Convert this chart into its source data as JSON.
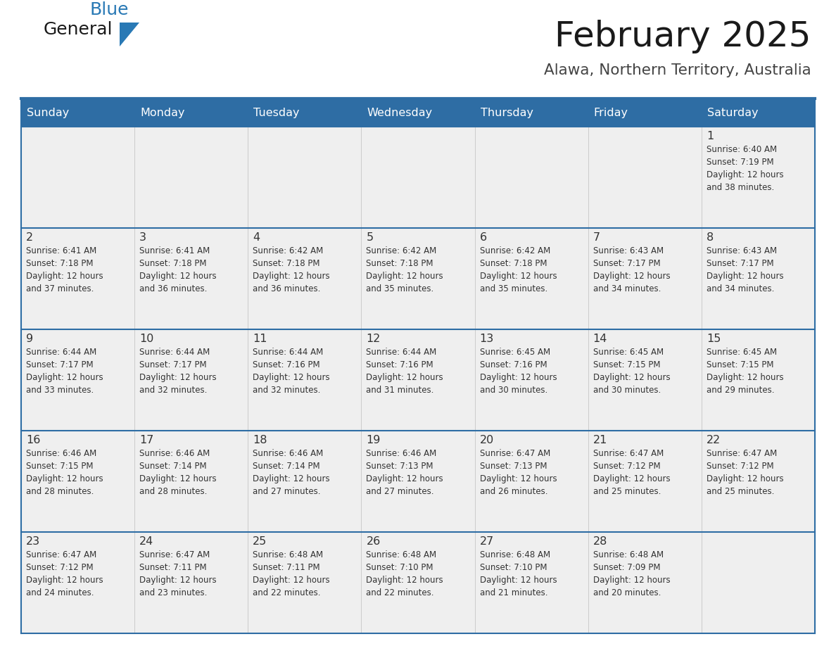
{
  "title": "February 2025",
  "subtitle": "Alawa, Northern Territory, Australia",
  "days_of_week": [
    "Sunday",
    "Monday",
    "Tuesday",
    "Wednesday",
    "Thursday",
    "Friday",
    "Saturday"
  ],
  "header_bg": "#2E6DA4",
  "header_text": "#FFFFFF",
  "cell_bg": "#EFEFEF",
  "cell_bg_white": "#FFFFFF",
  "border_color": "#2E6DA4",
  "day_num_color": "#333333",
  "text_color": "#333333",
  "logo_general_color": "#1a1a1a",
  "logo_blue_color": "#2979B5",
  "calendar_data": [
    [
      {
        "day": null,
        "info": null
      },
      {
        "day": null,
        "info": null
      },
      {
        "day": null,
        "info": null
      },
      {
        "day": null,
        "info": null
      },
      {
        "day": null,
        "info": null
      },
      {
        "day": null,
        "info": null
      },
      {
        "day": 1,
        "info": "Sunrise: 6:40 AM\nSunset: 7:19 PM\nDaylight: 12 hours\nand 38 minutes."
      }
    ],
    [
      {
        "day": 2,
        "info": "Sunrise: 6:41 AM\nSunset: 7:18 PM\nDaylight: 12 hours\nand 37 minutes."
      },
      {
        "day": 3,
        "info": "Sunrise: 6:41 AM\nSunset: 7:18 PM\nDaylight: 12 hours\nand 36 minutes."
      },
      {
        "day": 4,
        "info": "Sunrise: 6:42 AM\nSunset: 7:18 PM\nDaylight: 12 hours\nand 36 minutes."
      },
      {
        "day": 5,
        "info": "Sunrise: 6:42 AM\nSunset: 7:18 PM\nDaylight: 12 hours\nand 35 minutes."
      },
      {
        "day": 6,
        "info": "Sunrise: 6:42 AM\nSunset: 7:18 PM\nDaylight: 12 hours\nand 35 minutes."
      },
      {
        "day": 7,
        "info": "Sunrise: 6:43 AM\nSunset: 7:17 PM\nDaylight: 12 hours\nand 34 minutes."
      },
      {
        "day": 8,
        "info": "Sunrise: 6:43 AM\nSunset: 7:17 PM\nDaylight: 12 hours\nand 34 minutes."
      }
    ],
    [
      {
        "day": 9,
        "info": "Sunrise: 6:44 AM\nSunset: 7:17 PM\nDaylight: 12 hours\nand 33 minutes."
      },
      {
        "day": 10,
        "info": "Sunrise: 6:44 AM\nSunset: 7:17 PM\nDaylight: 12 hours\nand 32 minutes."
      },
      {
        "day": 11,
        "info": "Sunrise: 6:44 AM\nSunset: 7:16 PM\nDaylight: 12 hours\nand 32 minutes."
      },
      {
        "day": 12,
        "info": "Sunrise: 6:44 AM\nSunset: 7:16 PM\nDaylight: 12 hours\nand 31 minutes."
      },
      {
        "day": 13,
        "info": "Sunrise: 6:45 AM\nSunset: 7:16 PM\nDaylight: 12 hours\nand 30 minutes."
      },
      {
        "day": 14,
        "info": "Sunrise: 6:45 AM\nSunset: 7:15 PM\nDaylight: 12 hours\nand 30 minutes."
      },
      {
        "day": 15,
        "info": "Sunrise: 6:45 AM\nSunset: 7:15 PM\nDaylight: 12 hours\nand 29 minutes."
      }
    ],
    [
      {
        "day": 16,
        "info": "Sunrise: 6:46 AM\nSunset: 7:15 PM\nDaylight: 12 hours\nand 28 minutes."
      },
      {
        "day": 17,
        "info": "Sunrise: 6:46 AM\nSunset: 7:14 PM\nDaylight: 12 hours\nand 28 minutes."
      },
      {
        "day": 18,
        "info": "Sunrise: 6:46 AM\nSunset: 7:14 PM\nDaylight: 12 hours\nand 27 minutes."
      },
      {
        "day": 19,
        "info": "Sunrise: 6:46 AM\nSunset: 7:13 PM\nDaylight: 12 hours\nand 27 minutes."
      },
      {
        "day": 20,
        "info": "Sunrise: 6:47 AM\nSunset: 7:13 PM\nDaylight: 12 hours\nand 26 minutes."
      },
      {
        "day": 21,
        "info": "Sunrise: 6:47 AM\nSunset: 7:12 PM\nDaylight: 12 hours\nand 25 minutes."
      },
      {
        "day": 22,
        "info": "Sunrise: 6:47 AM\nSunset: 7:12 PM\nDaylight: 12 hours\nand 25 minutes."
      }
    ],
    [
      {
        "day": 23,
        "info": "Sunrise: 6:47 AM\nSunset: 7:12 PM\nDaylight: 12 hours\nand 24 minutes."
      },
      {
        "day": 24,
        "info": "Sunrise: 6:47 AM\nSunset: 7:11 PM\nDaylight: 12 hours\nand 23 minutes."
      },
      {
        "day": 25,
        "info": "Sunrise: 6:48 AM\nSunset: 7:11 PM\nDaylight: 12 hours\nand 22 minutes."
      },
      {
        "day": 26,
        "info": "Sunrise: 6:48 AM\nSunset: 7:10 PM\nDaylight: 12 hours\nand 22 minutes."
      },
      {
        "day": 27,
        "info": "Sunrise: 6:48 AM\nSunset: 7:10 PM\nDaylight: 12 hours\nand 21 minutes."
      },
      {
        "day": 28,
        "info": "Sunrise: 6:48 AM\nSunset: 7:09 PM\nDaylight: 12 hours\nand 20 minutes."
      },
      {
        "day": null,
        "info": null
      }
    ]
  ]
}
